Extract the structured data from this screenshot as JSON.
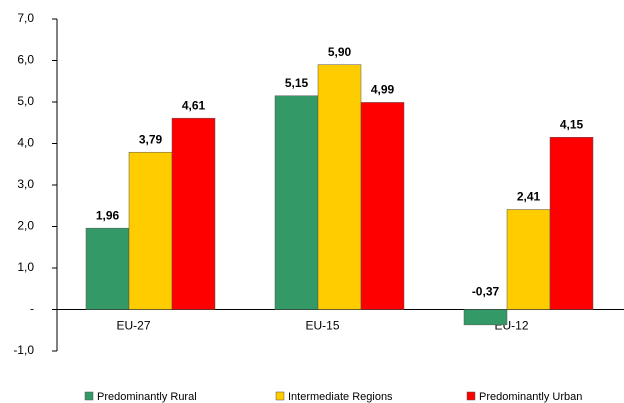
{
  "chart_data": {
    "type": "bar",
    "categories": [
      "EU-27",
      "EU-15",
      "EU-12"
    ],
    "series": [
      {
        "name": "Predominantly Rural",
        "color": "#339966",
        "values": [
          1.96,
          5.15,
          -0.37
        ],
        "value_labels": [
          "1,96",
          "5,15",
          "-0,37"
        ]
      },
      {
        "name": "Intermediate Regions",
        "color": "#ffcc00",
        "values": [
          3.79,
          5.9,
          2.41
        ],
        "value_labels": [
          "3,79",
          "5,90",
          "2,41"
        ]
      },
      {
        "name": "Predominantly Urban",
        "color": "#ff0000",
        "values": [
          4.61,
          4.99,
          4.15
        ],
        "value_labels": [
          "4,61",
          "4,99",
          "4,15"
        ]
      }
    ],
    "ylim": [
      -1,
      7
    ],
    "yticks": [
      {
        "value": 7,
        "label": "7,0"
      },
      {
        "value": 6,
        "label": "6,0"
      },
      {
        "value": 5,
        "label": "5,0"
      },
      {
        "value": 4,
        "label": "4,0"
      },
      {
        "value": 3,
        "label": "3,0"
      },
      {
        "value": 2,
        "label": "2,0"
      },
      {
        "value": 1,
        "label": "1,0"
      },
      {
        "value": 0,
        "label": "-"
      },
      {
        "value": -1,
        "label": "-1,0"
      }
    ],
    "grid": false,
    "legend": "bottom"
  }
}
